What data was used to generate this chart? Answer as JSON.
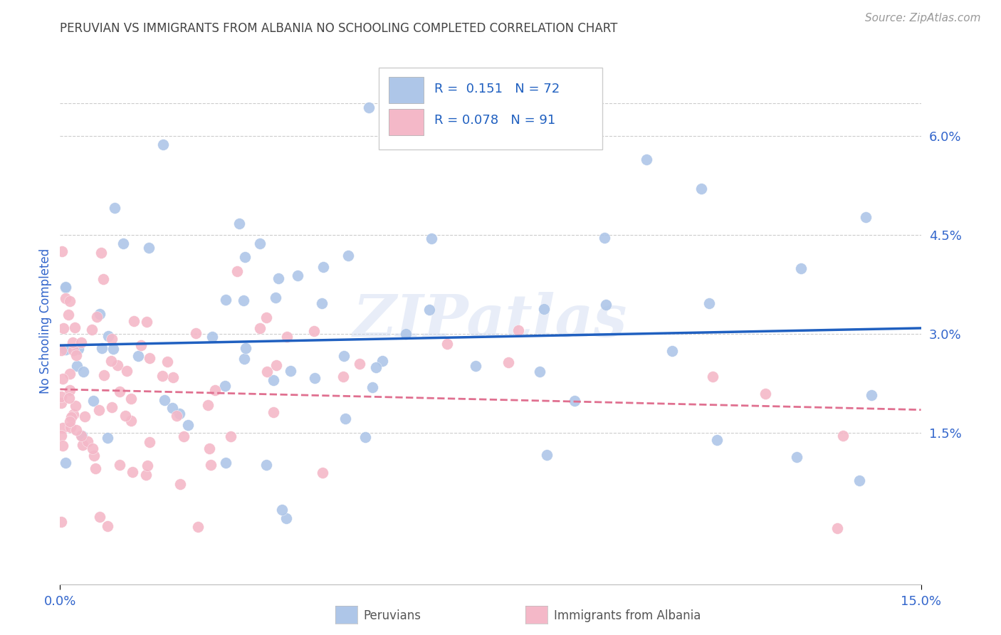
{
  "title": "PERUVIAN VS IMMIGRANTS FROM ALBANIA NO SCHOOLING COMPLETED CORRELATION CHART",
  "source": "Source: ZipAtlas.com",
  "ylabel": "No Schooling Completed",
  "xlim": [
    0.0,
    0.15
  ],
  "ylim": [
    -0.008,
    0.072
  ],
  "xticks": [
    0.0,
    0.15
  ],
  "xtick_labels": [
    "0.0%",
    "15.0%"
  ],
  "yticks": [
    0.015,
    0.03,
    0.045,
    0.06
  ],
  "ytick_labels": [
    "1.5%",
    "3.0%",
    "4.5%",
    "6.0%"
  ],
  "blue_scatter_color": "#aec6e8",
  "pink_scatter_color": "#f4b8c8",
  "blue_line_color": "#2060c0",
  "pink_line_color": "#e07090",
  "watermark": "ZIPatlas",
  "background_color": "#ffffff",
  "grid_color": "#cccccc",
  "axis_label_color": "#3366cc",
  "title_color": "#444444",
  "legend_box_color": "#aec6e8",
  "legend_pink_color": "#f4b8c8",
  "legend_R1": "R =  0.151",
  "legend_N1": "N = 72",
  "legend_R2": "R = 0.078",
  "legend_N2": "N = 91",
  "source_color": "#999999"
}
